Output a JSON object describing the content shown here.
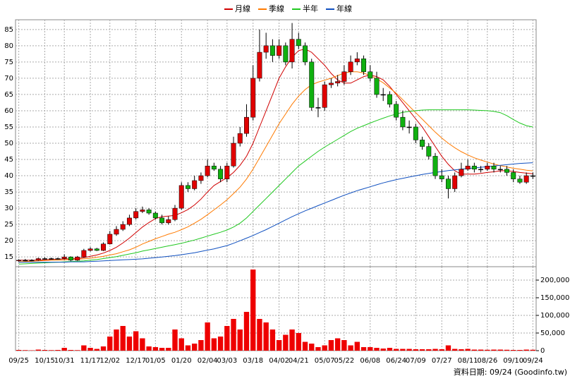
{
  "legend": [
    "月線",
    "季線",
    "半年",
    "年線"
  ],
  "footer": "資料日期: 09/24 (Goodinfo.tw)",
  "chart_data": [
    {
      "type": "candlestick",
      "up_color": "#e00000",
      "down_color": "#10b010",
      "open": [
        13.8,
        14,
        14,
        14,
        14.5,
        14.5,
        14.5,
        14.5,
        15,
        14,
        15,
        17,
        17.5,
        17,
        19,
        22,
        23.5,
        25,
        27,
        29,
        29.5,
        28.5,
        27,
        25.5,
        26.5,
        30,
        37,
        36,
        38.5,
        40,
        43,
        42,
        39,
        43,
        50,
        53,
        58,
        70,
        78,
        80,
        77,
        80,
        75,
        82,
        80,
        75,
        61,
        61,
        68,
        68.5,
        69,
        72,
        75,
        76,
        72,
        70,
        65,
        65,
        62,
        58,
        55,
        55,
        51,
        49,
        46,
        40,
        39,
        36,
        40,
        42,
        43,
        42,
        42,
        43,
        42,
        42,
        41,
        39,
        38,
        40
      ],
      "high": [
        14.3,
        14.4,
        14.3,
        14.8,
        14.9,
        14.8,
        14.8,
        15.8,
        15.2,
        15.3,
        17.5,
        18,
        17.8,
        19.5,
        23,
        24.5,
        26,
        28,
        30,
        30.5,
        30,
        29,
        28,
        27.5,
        31,
        38,
        38,
        40,
        41,
        45,
        44,
        43,
        44,
        52,
        55,
        62,
        74,
        85,
        84,
        82,
        82,
        81,
        87,
        84,
        81,
        76,
        64,
        69,
        70,
        71,
        74,
        77,
        78,
        77,
        74,
        72,
        67,
        66,
        63,
        60,
        57,
        56,
        52,
        50,
        47,
        42,
        40,
        41,
        44,
        45,
        44,
        43,
        44,
        44,
        43,
        43,
        42,
        40,
        41,
        41
      ],
      "low": [
        13.5,
        13.7,
        13.7,
        13.8,
        14.2,
        14.2,
        14.2,
        14.2,
        13.7,
        13.8,
        14.8,
        16.7,
        16.8,
        16.8,
        18.8,
        21.5,
        23,
        24.5,
        26.5,
        28.5,
        28,
        26.5,
        25,
        25,
        26,
        29.5,
        35,
        35.5,
        37.5,
        39.5,
        41.5,
        38,
        38,
        42.5,
        49,
        52,
        57,
        69,
        76,
        75,
        76,
        74,
        73,
        79,
        74,
        60,
        58,
        60,
        67,
        67.5,
        68,
        71,
        74,
        71,
        69,
        64,
        63,
        61,
        57,
        54,
        53,
        50,
        48,
        45,
        39,
        38,
        33,
        35,
        39.5,
        41.5,
        41,
        41,
        41.5,
        41,
        41,
        40,
        38,
        37.5,
        37.5,
        39
      ],
      "close": [
        14,
        14,
        14,
        14.5,
        14.5,
        14.5,
        14.5,
        15,
        14,
        15,
        17,
        17.5,
        17,
        19,
        22,
        23.5,
        25,
        27,
        29,
        29.5,
        28.5,
        27,
        25.5,
        26.5,
        30,
        37,
        36,
        38.5,
        40,
        43,
        42,
        39,
        43,
        50,
        53,
        58,
        70,
        78,
        80,
        77,
        80,
        75,
        82,
        80,
        75,
        61,
        61,
        68,
        68.5,
        69,
        72,
        75,
        76,
        72,
        70,
        65,
        65,
        62,
        58,
        55,
        55,
        51,
        49,
        46,
        40,
        39,
        36,
        40,
        42,
        43,
        42,
        42,
        43,
        42,
        42,
        41,
        39,
        38,
        40,
        40
      ],
      "series": [
        {
          "name": "月線",
          "color": "#d00000",
          "values": [
            14,
            14,
            14,
            14,
            14.1,
            14.2,
            14.3,
            14.4,
            14.4,
            14.5,
            14.8,
            15.2,
            15.6,
            16.2,
            17,
            18,
            19.3,
            20.8,
            22.5,
            24.2,
            25.6,
            26.8,
            27.4,
            27.6,
            27.8,
            28.6,
            29.6,
            31,
            32.8,
            35,
            37,
            38.2,
            39.4,
            41,
            43.2,
            46,
            50,
            55,
            60,
            65,
            70,
            73.5,
            76.5,
            78.5,
            79,
            78,
            76,
            74,
            71.5,
            69.5,
            68.5,
            68.5,
            69.5,
            70.5,
            71,
            70.5,
            69.5,
            67.5,
            65,
            62.5,
            60,
            57.5,
            55,
            52,
            49,
            46,
            43.5,
            41.5,
            40.5,
            40.5,
            40.5,
            40.7,
            41,
            41.2,
            41.5,
            41.6,
            41.3,
            41,
            40.8,
            40.6
          ]
        },
        {
          "name": "季線",
          "color": "#ff7a00",
          "values": [
            13.5,
            13.6,
            13.7,
            13.8,
            13.9,
            14,
            14,
            14.1,
            14.2,
            14.3,
            14.4,
            14.6,
            14.9,
            15.2,
            15.6,
            16,
            16.6,
            17.2,
            18,
            19,
            19.8,
            20.6,
            21.3,
            22,
            22.6,
            23.4,
            24.3,
            25.4,
            26.6,
            28,
            29.5,
            31,
            32.6,
            34.5,
            36.5,
            39,
            42,
            45.5,
            49,
            52.5,
            56,
            59,
            62,
            64.5,
            66.5,
            68,
            68.8,
            69.4,
            70,
            70.8,
            71.6,
            72,
            72,
            71.6,
            70.8,
            69.8,
            68.6,
            67,
            65.4,
            63.4,
            61.4,
            59.4,
            57.4,
            55.4,
            53.4,
            51.6,
            50,
            48.6,
            47.4,
            46.4,
            45.5,
            44.8,
            44.2,
            43.6,
            43.1,
            42.7,
            42.3,
            42,
            41.7,
            41.5
          ]
        },
        {
          "name": "半年",
          "color": "#20c820",
          "values": [
            12.8,
            12.9,
            13,
            13.1,
            13.2,
            13.3,
            13.4,
            13.5,
            13.6,
            13.7,
            13.8,
            14,
            14.2,
            14.5,
            14.8,
            15.1,
            15.5,
            15.9,
            16.3,
            16.8,
            17.2,
            17.6,
            18,
            18.4,
            18.8,
            19.2,
            19.7,
            20.2,
            20.8,
            21.4,
            22,
            22.6,
            23.3,
            24.2,
            25.4,
            27,
            29,
            31,
            33,
            35,
            37,
            39,
            41,
            43,
            44.5,
            46,
            47.5,
            48.8,
            50,
            51.2,
            52.4,
            53.6,
            54.6,
            55.4,
            56.2,
            57,
            57.7,
            58.4,
            59,
            59.5,
            59.8,
            60,
            60.2,
            60.3,
            60.3,
            60.3,
            60.3,
            60.3,
            60.3,
            60.3,
            60.2,
            60.1,
            60,
            59.8,
            59.4,
            58.5,
            57.3,
            56.2,
            55.4,
            55
          ]
        },
        {
          "name": "年線",
          "color": "#1050c0",
          "values": [
            13.4,
            13.4,
            13.4,
            13.4,
            13.4,
            13.4,
            13.4,
            13.4,
            13.5,
            13.5,
            13.5,
            13.6,
            13.7,
            13.8,
            13.9,
            14,
            14.1,
            14.2,
            14.3,
            14.4,
            14.6,
            14.8,
            15,
            15.2,
            15.4,
            15.7,
            16,
            16.3,
            16.7,
            17.1,
            17.5,
            18,
            18.5,
            19.2,
            20,
            20.8,
            21.6,
            22.5,
            23.4,
            24.4,
            25.4,
            26.4,
            27.4,
            28.3,
            29.2,
            30,
            30.8,
            31.6,
            32.4,
            33.2,
            34,
            34.7,
            35.4,
            36,
            36.6,
            37.2,
            37.8,
            38.3,
            38.8,
            39.2,
            39.6,
            40,
            40.4,
            40.7,
            41,
            41.3,
            41.6,
            41.8,
            42,
            42.2,
            42.4,
            42.6,
            42.8,
            43,
            43.2,
            43.4,
            43.6,
            43.8,
            43.9,
            44
          ]
        }
      ],
      "ylim": [
        12,
        88
      ],
      "yticks": [
        15,
        20,
        25,
        30,
        35,
        40,
        45,
        50,
        55,
        60,
        65,
        70,
        75,
        80,
        85
      ],
      "grid": true
    },
    {
      "type": "bar",
      "color": "#ee0000",
      "categories": [
        "09/25",
        null,
        null,
        null,
        "10/15",
        null,
        null,
        "10/31",
        null,
        null,
        null,
        "11/17",
        null,
        null,
        "12/02",
        null,
        null,
        null,
        "12/17",
        null,
        null,
        "01/05",
        null,
        null,
        null,
        "01/20",
        null,
        null,
        null,
        "02/04",
        null,
        null,
        "03/03",
        null,
        null,
        null,
        "03/18",
        null,
        null,
        null,
        "04/02",
        null,
        null,
        "04/21",
        null,
        null,
        null,
        "05/07",
        null,
        null,
        "05/22",
        null,
        null,
        null,
        "06/08",
        null,
        null,
        null,
        "06/24",
        null,
        null,
        "07/09",
        null,
        null,
        null,
        "07/27",
        null,
        null,
        null,
        "08/11",
        null,
        null,
        "08/26",
        null,
        null,
        null,
        "09/10",
        null,
        null,
        "09/24"
      ],
      "values": [
        2000,
        1500,
        1000,
        3000,
        2000,
        1500,
        2000,
        8000,
        2000,
        1500,
        15000,
        8000,
        5000,
        12000,
        40000,
        60000,
        70000,
        40000,
        55000,
        35000,
        12000,
        10000,
        8000,
        8000,
        60000,
        35000,
        15000,
        20000,
        30000,
        80000,
        35000,
        40000,
        70000,
        90000,
        60000,
        110000,
        230000,
        90000,
        80000,
        60000,
        30000,
        45000,
        60000,
        50000,
        25000,
        20000,
        10000,
        15000,
        30000,
        35000,
        30000,
        15000,
        25000,
        10000,
        10000,
        8000,
        6000,
        8000,
        5000,
        5000,
        5000,
        4000,
        4000,
        4000,
        5000,
        4000,
        15000,
        5000,
        4000,
        5000,
        3000,
        3000,
        2500,
        3000,
        3000,
        2500,
        2000,
        2000,
        3000,
        2500
      ],
      "ylim": [
        0,
        238000
      ],
      "yticks": [
        0,
        {
          "value": 50000,
          "label": "50,000"
        },
        {
          "value": 100000,
          "label": "100,000"
        },
        {
          "value": 150000,
          "label": "150,000"
        },
        {
          "value": 200000,
          "label": "200,000"
        }
      ],
      "grid": true
    }
  ]
}
